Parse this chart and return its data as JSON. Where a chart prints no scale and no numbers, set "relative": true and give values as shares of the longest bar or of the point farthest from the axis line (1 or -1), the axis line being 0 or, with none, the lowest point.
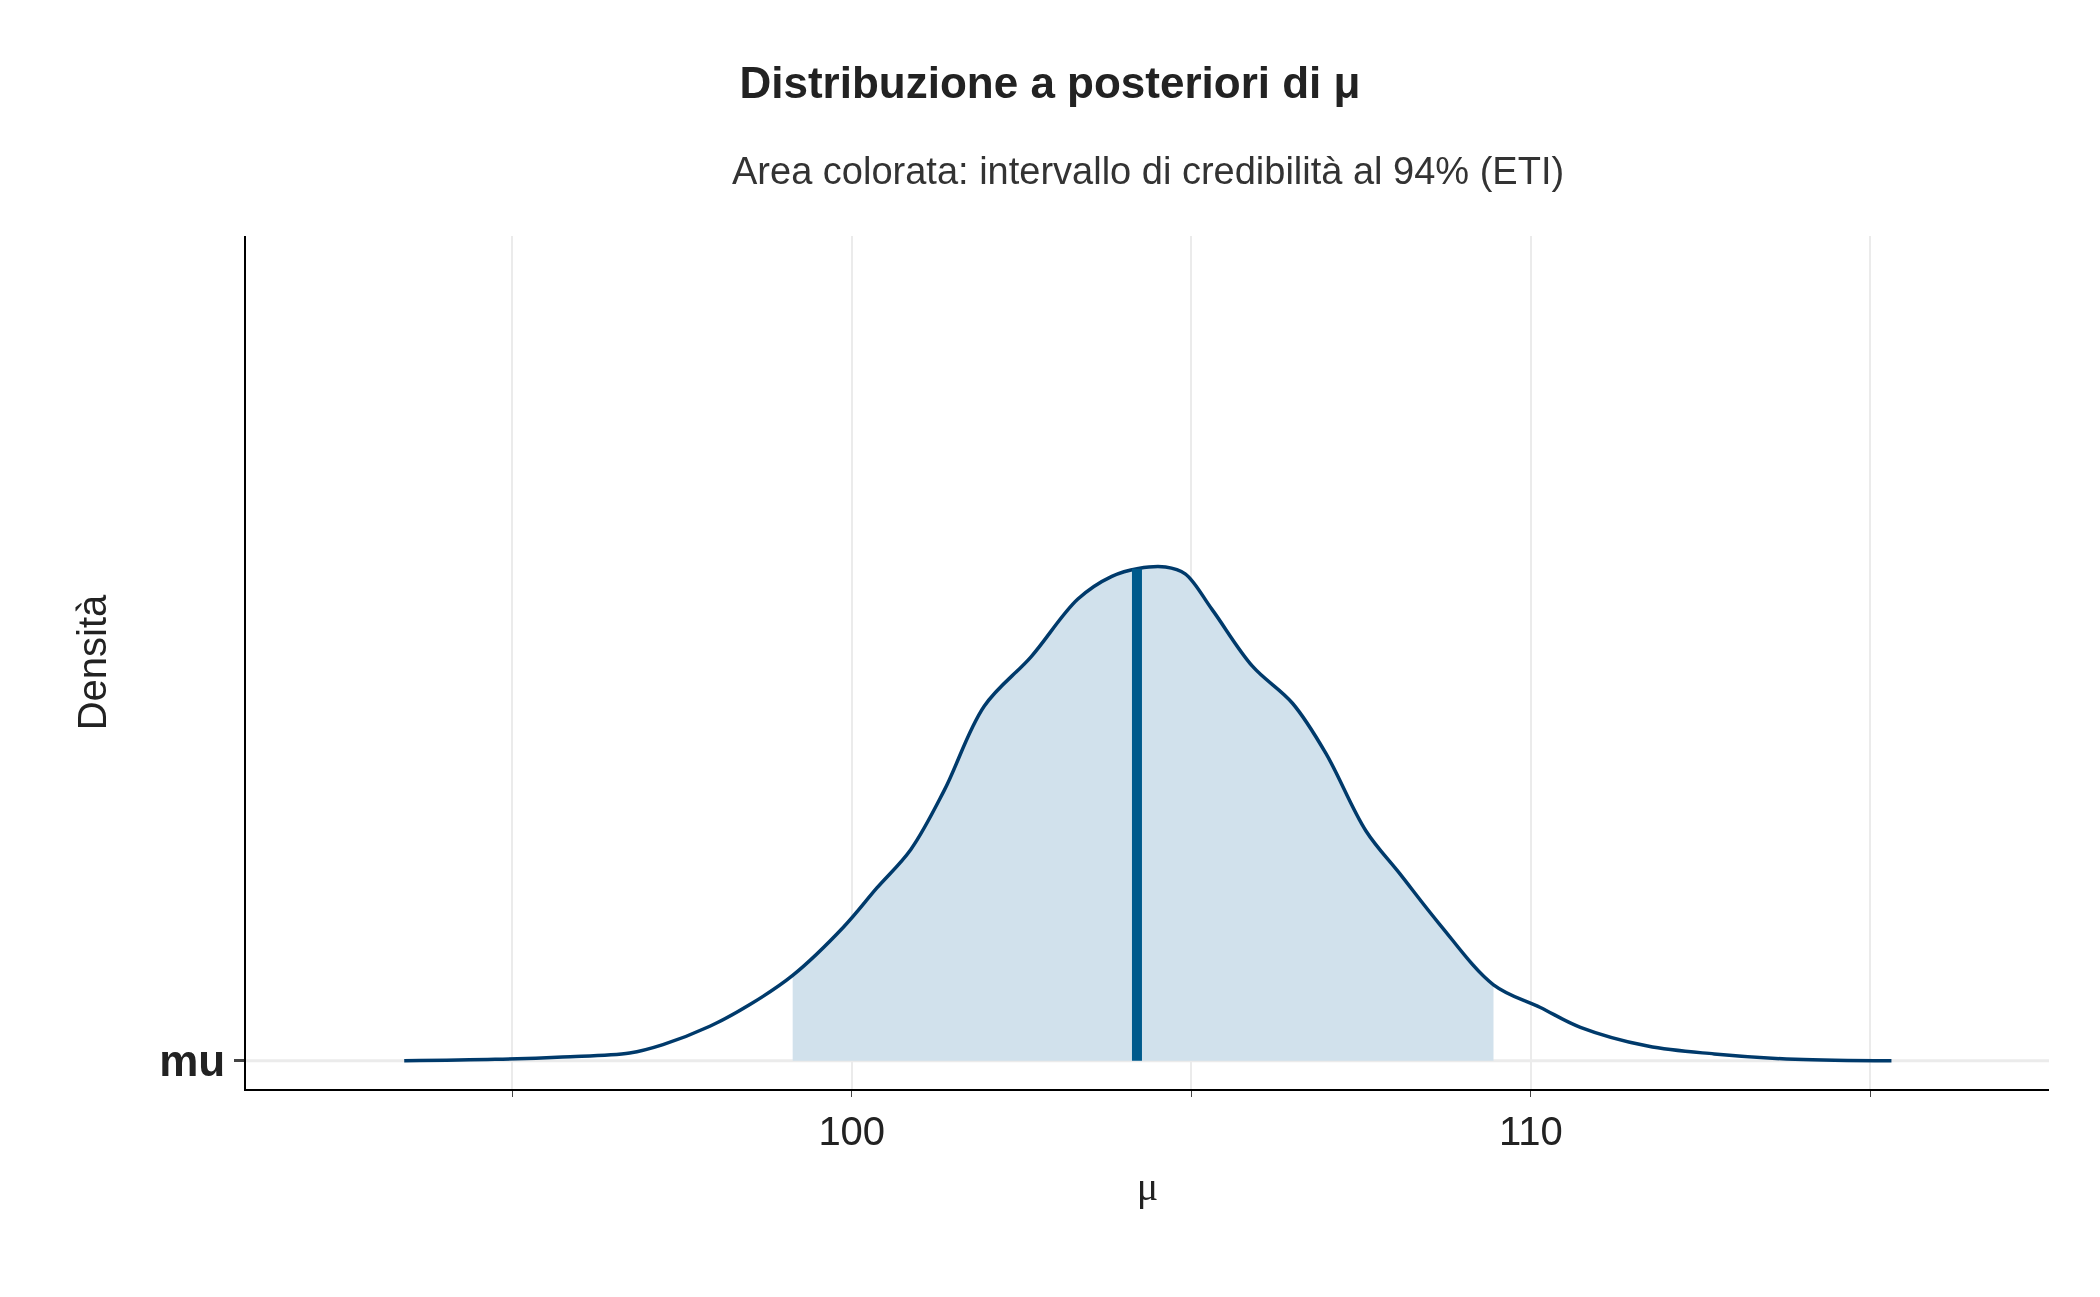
{
  "chart_data": {
    "type": "area",
    "title": "Distribuzione a posteriori di μ",
    "subtitle": "Area colorata: intervallo di credibilità al 94% (ETI)",
    "xlabel": "μ",
    "ylabel": "Densità",
    "relative": true,
    "grid": "x",
    "xlim": [
      91.08,
      117.63
    ],
    "xticks": [
      {
        "value": 95,
        "label": null
      },
      100,
      {
        "value": 105,
        "label": null
      },
      110,
      {
        "value": 115,
        "label": null
      }
    ],
    "series": [
      {
        "type": "area",
        "color": "#d1e1ec",
        "x": [
          99.13,
          99.88,
          100.37,
          100.87,
          101.36,
          101.95,
          102.64,
          103.33,
          103.83,
          104.22,
          104.62,
          104.91,
          105.31,
          105.9,
          106.49,
          106.98,
          107.57,
          108.07,
          108.66,
          109.45
        ],
        "values": [
          0.173,
          0.271,
          0.35,
          0.428,
          0.547,
          0.718,
          0.818,
          0.935,
          0.981,
          0.997,
          1,
          0.986,
          0.913,
          0.799,
          0.724,
          0.623,
          0.466,
          0.379,
          0.276,
          0.154
        ]
      },
      {
        "type": "line",
        "name": "mu",
        "color": "#003a6b",
        "x": [
          93.41,
          94.75,
          95.74,
          96.73,
          97.22,
          97.91,
          98.5,
          99.13,
          99.88,
          100.37,
          100.87,
          101.36,
          101.95,
          102.64,
          103.33,
          103.83,
          104.22,
          104.62,
          104.91,
          105.31,
          105.9,
          106.49,
          106.98,
          107.57,
          108.07,
          108.66,
          109.45,
          110.14,
          110.73,
          111.72,
          112.7,
          113.89,
          115.31
        ],
        "values": [
          0,
          0.003,
          0.008,
          0.016,
          0.033,
          0.07,
          0.114,
          0.173,
          0.271,
          0.35,
          0.428,
          0.547,
          0.718,
          0.818,
          0.935,
          0.981,
          0.997,
          1,
          0.986,
          0.913,
          0.799,
          0.724,
          0.623,
          0.466,
          0.379,
          0.276,
          0.154,
          0.108,
          0.068,
          0.03,
          0.014,
          0.003,
          0
        ]
      }
    ],
    "ref_lines": [
      {
        "axis": "x",
        "value": 104.2,
        "color": "#005a8c"
      }
    ]
  }
}
